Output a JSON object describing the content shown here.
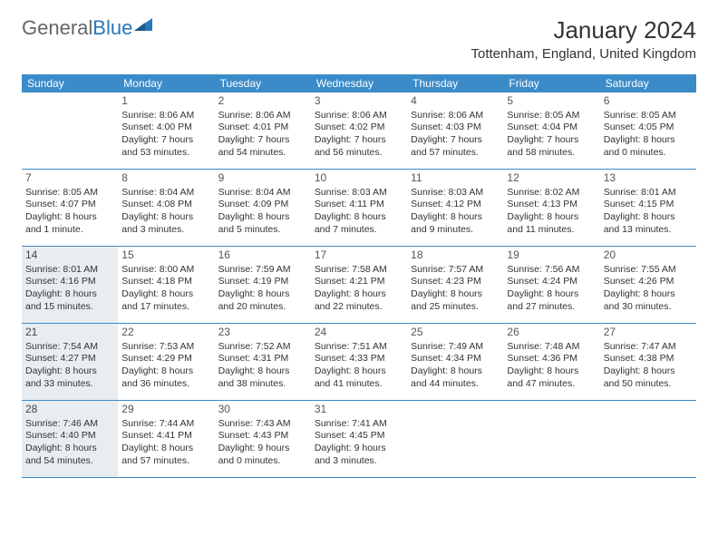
{
  "logo": {
    "part1": "General",
    "part2": "Blue"
  },
  "header": {
    "month_title": "January 2024",
    "location": "Tottenham, England, United Kingdom"
  },
  "colors": {
    "header_bar": "#3b8bc9",
    "highlight_bg": "#e8edf2",
    "text": "#333333"
  },
  "weekdays": [
    "Sunday",
    "Monday",
    "Tuesday",
    "Wednesday",
    "Thursday",
    "Friday",
    "Saturday"
  ],
  "weeks": [
    [
      {
        "num": "",
        "sunrise": "",
        "sunset": "",
        "daylight": "",
        "highlight": false
      },
      {
        "num": "1",
        "sunrise": "Sunrise: 8:06 AM",
        "sunset": "Sunset: 4:00 PM",
        "daylight": "Daylight: 7 hours and 53 minutes.",
        "highlight": false
      },
      {
        "num": "2",
        "sunrise": "Sunrise: 8:06 AM",
        "sunset": "Sunset: 4:01 PM",
        "daylight": "Daylight: 7 hours and 54 minutes.",
        "highlight": false
      },
      {
        "num": "3",
        "sunrise": "Sunrise: 8:06 AM",
        "sunset": "Sunset: 4:02 PM",
        "daylight": "Daylight: 7 hours and 56 minutes.",
        "highlight": false
      },
      {
        "num": "4",
        "sunrise": "Sunrise: 8:06 AM",
        "sunset": "Sunset: 4:03 PM",
        "daylight": "Daylight: 7 hours and 57 minutes.",
        "highlight": false
      },
      {
        "num": "5",
        "sunrise": "Sunrise: 8:05 AM",
        "sunset": "Sunset: 4:04 PM",
        "daylight": "Daylight: 7 hours and 58 minutes.",
        "highlight": false
      },
      {
        "num": "6",
        "sunrise": "Sunrise: 8:05 AM",
        "sunset": "Sunset: 4:05 PM",
        "daylight": "Daylight: 8 hours and 0 minutes.",
        "highlight": false
      }
    ],
    [
      {
        "num": "7",
        "sunrise": "Sunrise: 8:05 AM",
        "sunset": "Sunset: 4:07 PM",
        "daylight": "Daylight: 8 hours and 1 minute.",
        "highlight": false
      },
      {
        "num": "8",
        "sunrise": "Sunrise: 8:04 AM",
        "sunset": "Sunset: 4:08 PM",
        "daylight": "Daylight: 8 hours and 3 minutes.",
        "highlight": false
      },
      {
        "num": "9",
        "sunrise": "Sunrise: 8:04 AM",
        "sunset": "Sunset: 4:09 PM",
        "daylight": "Daylight: 8 hours and 5 minutes.",
        "highlight": false
      },
      {
        "num": "10",
        "sunrise": "Sunrise: 8:03 AM",
        "sunset": "Sunset: 4:11 PM",
        "daylight": "Daylight: 8 hours and 7 minutes.",
        "highlight": false
      },
      {
        "num": "11",
        "sunrise": "Sunrise: 8:03 AM",
        "sunset": "Sunset: 4:12 PM",
        "daylight": "Daylight: 8 hours and 9 minutes.",
        "highlight": false
      },
      {
        "num": "12",
        "sunrise": "Sunrise: 8:02 AM",
        "sunset": "Sunset: 4:13 PM",
        "daylight": "Daylight: 8 hours and 11 minutes.",
        "highlight": false
      },
      {
        "num": "13",
        "sunrise": "Sunrise: 8:01 AM",
        "sunset": "Sunset: 4:15 PM",
        "daylight": "Daylight: 8 hours and 13 minutes.",
        "highlight": false
      }
    ],
    [
      {
        "num": "14",
        "sunrise": "Sunrise: 8:01 AM",
        "sunset": "Sunset: 4:16 PM",
        "daylight": "Daylight: 8 hours and 15 minutes.",
        "highlight": true
      },
      {
        "num": "15",
        "sunrise": "Sunrise: 8:00 AM",
        "sunset": "Sunset: 4:18 PM",
        "daylight": "Daylight: 8 hours and 17 minutes.",
        "highlight": false
      },
      {
        "num": "16",
        "sunrise": "Sunrise: 7:59 AM",
        "sunset": "Sunset: 4:19 PM",
        "daylight": "Daylight: 8 hours and 20 minutes.",
        "highlight": false
      },
      {
        "num": "17",
        "sunrise": "Sunrise: 7:58 AM",
        "sunset": "Sunset: 4:21 PM",
        "daylight": "Daylight: 8 hours and 22 minutes.",
        "highlight": false
      },
      {
        "num": "18",
        "sunrise": "Sunrise: 7:57 AM",
        "sunset": "Sunset: 4:23 PM",
        "daylight": "Daylight: 8 hours and 25 minutes.",
        "highlight": false
      },
      {
        "num": "19",
        "sunrise": "Sunrise: 7:56 AM",
        "sunset": "Sunset: 4:24 PM",
        "daylight": "Daylight: 8 hours and 27 minutes.",
        "highlight": false
      },
      {
        "num": "20",
        "sunrise": "Sunrise: 7:55 AM",
        "sunset": "Sunset: 4:26 PM",
        "daylight": "Daylight: 8 hours and 30 minutes.",
        "highlight": false
      }
    ],
    [
      {
        "num": "21",
        "sunrise": "Sunrise: 7:54 AM",
        "sunset": "Sunset: 4:27 PM",
        "daylight": "Daylight: 8 hours and 33 minutes.",
        "highlight": true
      },
      {
        "num": "22",
        "sunrise": "Sunrise: 7:53 AM",
        "sunset": "Sunset: 4:29 PM",
        "daylight": "Daylight: 8 hours and 36 minutes.",
        "highlight": false
      },
      {
        "num": "23",
        "sunrise": "Sunrise: 7:52 AM",
        "sunset": "Sunset: 4:31 PM",
        "daylight": "Daylight: 8 hours and 38 minutes.",
        "highlight": false
      },
      {
        "num": "24",
        "sunrise": "Sunrise: 7:51 AM",
        "sunset": "Sunset: 4:33 PM",
        "daylight": "Daylight: 8 hours and 41 minutes.",
        "highlight": false
      },
      {
        "num": "25",
        "sunrise": "Sunrise: 7:49 AM",
        "sunset": "Sunset: 4:34 PM",
        "daylight": "Daylight: 8 hours and 44 minutes.",
        "highlight": false
      },
      {
        "num": "26",
        "sunrise": "Sunrise: 7:48 AM",
        "sunset": "Sunset: 4:36 PM",
        "daylight": "Daylight: 8 hours and 47 minutes.",
        "highlight": false
      },
      {
        "num": "27",
        "sunrise": "Sunrise: 7:47 AM",
        "sunset": "Sunset: 4:38 PM",
        "daylight": "Daylight: 8 hours and 50 minutes.",
        "highlight": false
      }
    ],
    [
      {
        "num": "28",
        "sunrise": "Sunrise: 7:46 AM",
        "sunset": "Sunset: 4:40 PM",
        "daylight": "Daylight: 8 hours and 54 minutes.",
        "highlight": true
      },
      {
        "num": "29",
        "sunrise": "Sunrise: 7:44 AM",
        "sunset": "Sunset: 4:41 PM",
        "daylight": "Daylight: 8 hours and 57 minutes.",
        "highlight": false
      },
      {
        "num": "30",
        "sunrise": "Sunrise: 7:43 AM",
        "sunset": "Sunset: 4:43 PM",
        "daylight": "Daylight: 9 hours and 0 minutes.",
        "highlight": false
      },
      {
        "num": "31",
        "sunrise": "Sunrise: 7:41 AM",
        "sunset": "Sunset: 4:45 PM",
        "daylight": "Daylight: 9 hours and 3 minutes.",
        "highlight": false
      },
      {
        "num": "",
        "sunrise": "",
        "sunset": "",
        "daylight": "",
        "highlight": false
      },
      {
        "num": "",
        "sunrise": "",
        "sunset": "",
        "daylight": "",
        "highlight": false
      },
      {
        "num": "",
        "sunrise": "",
        "sunset": "",
        "daylight": "",
        "highlight": false
      }
    ]
  ]
}
